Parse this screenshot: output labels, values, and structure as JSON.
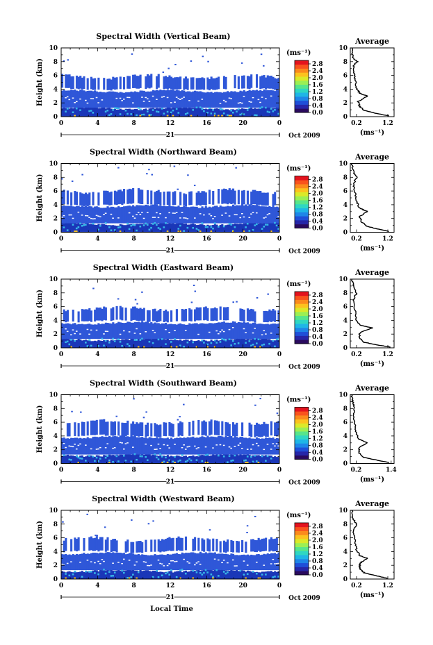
{
  "colors": {
    "colorbar": [
      "#2a0a5e",
      "#2626a8",
      "#1f4fd8",
      "#1e86e8",
      "#1fb6e6",
      "#2fd7c2",
      "#57e58b",
      "#9bef54",
      "#dbe929",
      "#fcc21e",
      "#fb8a1c",
      "#f9531d",
      "#e4131d"
    ],
    "echo_main": "#2f57d8",
    "echo_dark": "#1a37b8",
    "echo_cyan": "#38b8e8"
  },
  "chart_data": [
    {
      "type": "heatmap",
      "title": "Spectral Width (Vertical Beam)",
      "ylabel": "Height (km)",
      "xlabel": "",
      "x_ticks": [
        "0",
        "4",
        "8",
        "12",
        "16",
        "20",
        "0"
      ],
      "y_ticks": [
        "0",
        "2",
        "4",
        "6",
        "8",
        "10"
      ],
      "xlim": [
        0,
        24
      ],
      "ylim": [
        0,
        10
      ],
      "day_label": "21",
      "month_label": "Oct 2009",
      "colorbar": {
        "unit": "(ms⁻¹)",
        "ticks": [
          "0.0",
          "0.4",
          "0.8",
          "1.2",
          "1.6",
          "2.0",
          "2.4",
          "2.8"
        ],
        "range": [
          0,
          3.0
        ]
      },
      "echo_layers": [
        [
          0,
          1.2
        ],
        [
          1.3,
          3.7
        ],
        [
          4.0,
          5.8
        ]
      ],
      "profile": {
        "title": "Average",
        "xlabel": "(ms⁻¹)",
        "x_ticks": [
          "0.2",
          "1.2"
        ],
        "xlim": [
          0.0,
          1.4
        ],
        "y_ticks": [
          "0",
          "2",
          "4",
          "6",
          "8",
          "10"
        ],
        "points": [
          [
            1.25,
            0.1
          ],
          [
            0.8,
            0.5
          ],
          [
            0.45,
            0.9
          ],
          [
            0.3,
            1.5
          ],
          [
            0.25,
            2.2
          ],
          [
            0.55,
            3.0
          ],
          [
            0.3,
            3.4
          ],
          [
            0.2,
            4.2
          ],
          [
            0.15,
            5.5
          ],
          [
            0.12,
            6.5
          ],
          [
            0.1,
            7.5
          ],
          [
            0.22,
            8.0
          ],
          [
            0.08,
            8.6
          ],
          [
            0.05,
            10
          ]
        ]
      }
    },
    {
      "type": "heatmap",
      "title": "Spectral Width (Northward Beam)",
      "ylabel": "Height (km)",
      "xlabel": "",
      "x_ticks": [
        "0",
        "4",
        "8",
        "12",
        "16",
        "20",
        "0"
      ],
      "y_ticks": [
        "0",
        "2",
        "4",
        "6",
        "8",
        "10"
      ],
      "xlim": [
        0,
        24
      ],
      "ylim": [
        0,
        10
      ],
      "day_label": "21",
      "month_label": "Oct 2009",
      "colorbar": {
        "unit": "(ms⁻¹)",
        "ticks": [
          "0.0",
          "0.4",
          "0.8",
          "1.2",
          "1.6",
          "2.0",
          "2.4",
          "2.8"
        ],
        "range": [
          0,
          3.0
        ]
      },
      "echo_layers": [
        [
          0,
          1.2
        ],
        [
          1.3,
          3.8
        ],
        [
          4.0,
          6.0
        ]
      ],
      "profile": {
        "title": "Average",
        "xlabel": "(ms⁻¹)",
        "x_ticks": [
          "0.2",
          "1.2"
        ],
        "xlim": [
          0.0,
          1.4
        ],
        "y_ticks": [
          "0",
          "2",
          "4",
          "6",
          "8",
          "10"
        ],
        "points": [
          [
            1.25,
            0.1
          ],
          [
            0.85,
            0.5
          ],
          [
            0.5,
            0.9
          ],
          [
            0.35,
            1.6
          ],
          [
            0.3,
            2.3
          ],
          [
            0.55,
            3.0
          ],
          [
            0.3,
            3.5
          ],
          [
            0.2,
            4.5
          ],
          [
            0.15,
            5.8
          ],
          [
            0.1,
            7.0
          ],
          [
            0.2,
            8.0
          ],
          [
            0.1,
            8.8
          ],
          [
            0.05,
            10
          ]
        ]
      }
    },
    {
      "type": "heatmap",
      "title": "Spectral Width (Eastward Beam)",
      "ylabel": "Height (km)",
      "xlabel": "",
      "x_ticks": [
        "0",
        "4",
        "8",
        "12",
        "16",
        "20",
        "0"
      ],
      "y_ticks": [
        "0",
        "2",
        "4",
        "6",
        "8",
        "10"
      ],
      "xlim": [
        0,
        24
      ],
      "ylim": [
        0,
        10
      ],
      "day_label": "21",
      "month_label": "Oct 2009",
      "colorbar": {
        "unit": "(ms⁻¹)",
        "ticks": [
          "0.0",
          "0.4",
          "0.8",
          "1.2",
          "1.6",
          "2.0",
          "2.4",
          "2.8"
        ],
        "range": [
          0,
          3.0
        ]
      },
      "echo_layers": [
        [
          0,
          1.2
        ],
        [
          1.3,
          3.6
        ],
        [
          3.9,
          5.7
        ]
      ],
      "profile": {
        "title": "Average",
        "xlabel": "(ms⁻¹)",
        "x_ticks": [
          "0.2",
          "1.2"
        ],
        "xlim": [
          0.0,
          1.4
        ],
        "y_ticks": [
          "0",
          "2",
          "4",
          "6",
          "8",
          "10"
        ],
        "points": [
          [
            1.3,
            0.1
          ],
          [
            0.9,
            0.4
          ],
          [
            0.45,
            0.8
          ],
          [
            0.3,
            1.4
          ],
          [
            0.3,
            2.2
          ],
          [
            0.7,
            2.9
          ],
          [
            0.3,
            3.3
          ],
          [
            0.2,
            4.0
          ],
          [
            0.15,
            5.5
          ],
          [
            0.1,
            7.0
          ],
          [
            0.2,
            8.0
          ],
          [
            0.1,
            9.0
          ],
          [
            0.05,
            10
          ]
        ]
      }
    },
    {
      "type": "heatmap",
      "title": "Spectral Width (Southward Beam)",
      "ylabel": "Height (km)",
      "xlabel": "",
      "x_ticks": [
        "0",
        "4",
        "8",
        "12",
        "16",
        "20",
        "0"
      ],
      "y_ticks": [
        "0",
        "2",
        "4",
        "6",
        "8",
        "10"
      ],
      "xlim": [
        0,
        24
      ],
      "ylim": [
        0,
        10
      ],
      "day_label": "21",
      "month_label": "Oct 2009",
      "colorbar": {
        "unit": "(ms⁻¹)",
        "ticks": [
          "0.0",
          "0.4",
          "0.8",
          "1.2",
          "1.6",
          "2.0",
          "2.4",
          "2.8"
        ],
        "range": [
          0,
          3.0
        ]
      },
      "echo_layers": [
        [
          0,
          1.2
        ],
        [
          1.3,
          3.8
        ],
        [
          4.0,
          6.0
        ]
      ],
      "profile": {
        "title": "Average",
        "xlabel": "(ms⁻¹)",
        "x_ticks": [
          "0.2",
          "1.4"
        ],
        "xlim": [
          0.0,
          1.5
        ],
        "y_ticks": [
          "0",
          "2",
          "4",
          "6",
          "8",
          "10"
        ],
        "points": [
          [
            1.35,
            0.1
          ],
          [
            0.9,
            0.5
          ],
          [
            0.45,
            0.9
          ],
          [
            0.3,
            1.5
          ],
          [
            0.3,
            2.3
          ],
          [
            0.6,
            3.0
          ],
          [
            0.3,
            3.5
          ],
          [
            0.2,
            4.5
          ],
          [
            0.15,
            5.8
          ],
          [
            0.1,
            7.0
          ],
          [
            0.15,
            8.0
          ],
          [
            0.08,
            9.0
          ],
          [
            0.05,
            10
          ]
        ]
      }
    },
    {
      "type": "heatmap",
      "title": "Spectral Width (Westward Beam)",
      "ylabel": "Height (km)",
      "xlabel": "Local Time",
      "x_ticks": [
        "0",
        "4",
        "8",
        "12",
        "16",
        "20",
        "0"
      ],
      "y_ticks": [
        "0",
        "2",
        "4",
        "6",
        "8",
        "10"
      ],
      "xlim": [
        0,
        24
      ],
      "ylim": [
        0,
        10
      ],
      "day_label": "21",
      "month_label": "Oct 2009",
      "colorbar": {
        "unit": "(ms⁻¹)",
        "ticks": [
          "0.0",
          "0.4",
          "0.8",
          "1.2",
          "1.6",
          "2.0",
          "2.4",
          "2.8"
        ],
        "range": [
          0,
          3.0
        ]
      },
      "echo_layers": [
        [
          0,
          1.2
        ],
        [
          1.3,
          3.7
        ],
        [
          4.0,
          5.8
        ]
      ],
      "profile": {
        "title": "Average",
        "xlabel": "(ms⁻¹)",
        "x_ticks": [
          "0.2",
          "1.2"
        ],
        "xlim": [
          0.0,
          1.4
        ],
        "y_ticks": [
          "0",
          "2",
          "4",
          "6",
          "8",
          "10"
        ],
        "points": [
          [
            1.2,
            0.1
          ],
          [
            0.8,
            0.5
          ],
          [
            0.45,
            0.9
          ],
          [
            0.3,
            1.5
          ],
          [
            0.3,
            2.3
          ],
          [
            0.55,
            3.0
          ],
          [
            0.3,
            3.4
          ],
          [
            0.2,
            4.3
          ],
          [
            0.15,
            5.5
          ],
          [
            0.1,
            7.0
          ],
          [
            0.2,
            8.0
          ],
          [
            0.08,
            8.8
          ],
          [
            0.05,
            10
          ]
        ]
      }
    }
  ]
}
